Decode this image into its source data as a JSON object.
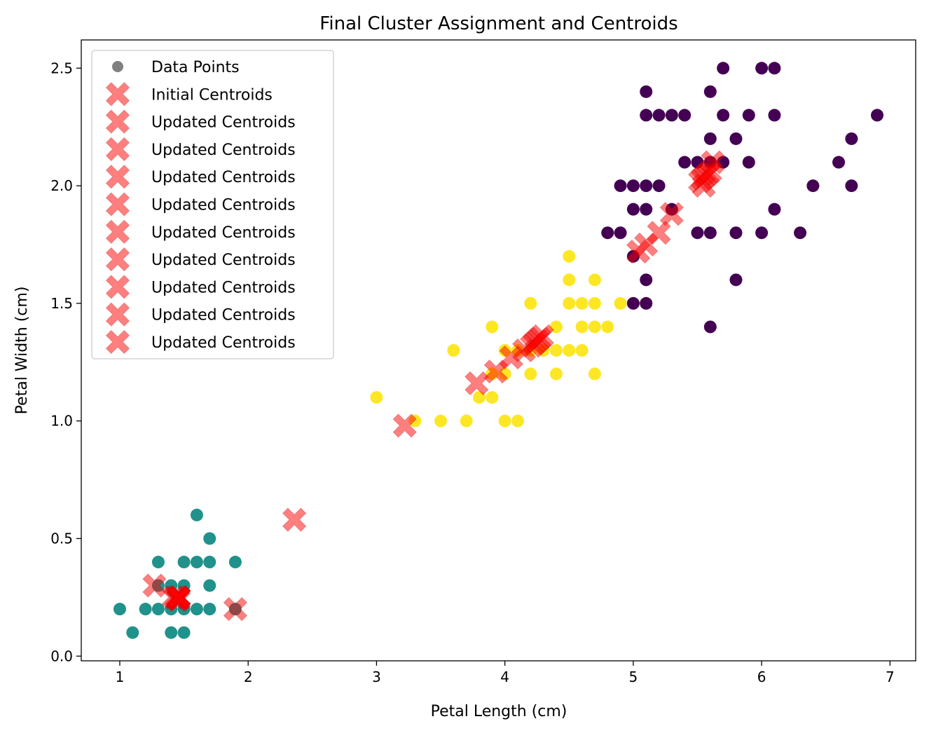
{
  "chart_data": {
    "type": "scatter",
    "title": "Final Cluster Assignment and Centroids",
    "xlabel": "Petal Length (cm)",
    "ylabel": "Petal Width (cm)",
    "xlim": [
      0.7,
      7.2
    ],
    "ylim": [
      -0.02,
      2.62
    ],
    "xticks": [
      1,
      2,
      3,
      4,
      5,
      6,
      7
    ],
    "xtick_labels": [
      "1",
      "2",
      "3",
      "4",
      "5",
      "6",
      "7"
    ],
    "yticks": [
      0.0,
      0.5,
      1.0,
      1.5,
      2.0,
      2.5
    ],
    "ytick_labels": [
      "0.0",
      "0.5",
      "1.0",
      "1.5",
      "2.0",
      "2.5"
    ],
    "grid": false,
    "legend_placement": "top-left",
    "legend": [
      {
        "label": "Data Points",
        "marker": "circle",
        "color": "#808080"
      },
      {
        "label": "Initial Centroids",
        "marker": "x",
        "color": "#ff0000"
      },
      {
        "label": "Updated Centroids",
        "marker": "x",
        "color": "#ff0000"
      },
      {
        "label": "Updated Centroids",
        "marker": "x",
        "color": "#ff0000"
      },
      {
        "label": "Updated Centroids",
        "marker": "x",
        "color": "#ff0000"
      },
      {
        "label": "Updated Centroids",
        "marker": "x",
        "color": "#ff0000"
      },
      {
        "label": "Updated Centroids",
        "marker": "x",
        "color": "#ff0000"
      },
      {
        "label": "Updated Centroids",
        "marker": "x",
        "color": "#ff0000"
      },
      {
        "label": "Updated Centroids",
        "marker": "x",
        "color": "#ff0000"
      },
      {
        "label": "Updated Centroids",
        "marker": "x",
        "color": "#ff0000"
      },
      {
        "label": "Updated Centroids",
        "marker": "x",
        "color": "#ff0000"
      }
    ],
    "series": [
      {
        "cluster": 0,
        "color": "#21918c",
        "points": [
          [
            1.0,
            0.2
          ],
          [
            1.1,
            0.1
          ],
          [
            1.2,
            0.2
          ],
          [
            1.3,
            0.2
          ],
          [
            1.3,
            0.3
          ],
          [
            1.3,
            0.4
          ],
          [
            1.4,
            0.1
          ],
          [
            1.4,
            0.2
          ],
          [
            1.4,
            0.3
          ],
          [
            1.5,
            0.1
          ],
          [
            1.5,
            0.2
          ],
          [
            1.5,
            0.3
          ],
          [
            1.5,
            0.4
          ],
          [
            1.6,
            0.2
          ],
          [
            1.6,
            0.4
          ],
          [
            1.6,
            0.6
          ],
          [
            1.7,
            0.2
          ],
          [
            1.7,
            0.3
          ],
          [
            1.7,
            0.4
          ],
          [
            1.7,
            0.5
          ],
          [
            1.9,
            0.2
          ],
          [
            1.9,
            0.4
          ]
        ]
      },
      {
        "cluster": 1,
        "color": "#fde725",
        "points": [
          [
            3.0,
            1.1
          ],
          [
            3.3,
            1.0
          ],
          [
            3.5,
            1.0
          ],
          [
            3.6,
            1.3
          ],
          [
            3.7,
            1.0
          ],
          [
            3.8,
            1.1
          ],
          [
            3.9,
            1.1
          ],
          [
            3.9,
            1.2
          ],
          [
            3.9,
            1.4
          ],
          [
            4.0,
            1.0
          ],
          [
            4.0,
            1.2
          ],
          [
            4.0,
            1.3
          ],
          [
            4.1,
            1.0
          ],
          [
            4.1,
            1.3
          ],
          [
            4.2,
            1.2
          ],
          [
            4.2,
            1.3
          ],
          [
            4.2,
            1.5
          ],
          [
            4.3,
            1.3
          ],
          [
            4.4,
            1.2
          ],
          [
            4.4,
            1.3
          ],
          [
            4.4,
            1.4
          ],
          [
            4.5,
            1.3
          ],
          [
            4.5,
            1.5
          ],
          [
            4.5,
            1.6
          ],
          [
            4.5,
            1.7
          ],
          [
            4.6,
            1.3
          ],
          [
            4.6,
            1.4
          ],
          [
            4.6,
            1.5
          ],
          [
            4.7,
            1.2
          ],
          [
            4.7,
            1.4
          ],
          [
            4.7,
            1.5
          ],
          [
            4.7,
            1.6
          ],
          [
            4.8,
            1.4
          ],
          [
            4.8,
            1.8
          ],
          [
            4.9,
            1.5
          ],
          [
            5.0,
            1.5
          ],
          [
            5.1,
            1.5
          ]
        ]
      },
      {
        "cluster": 2,
        "color": "#440154",
        "points": [
          [
            4.8,
            1.8
          ],
          [
            4.9,
            1.8
          ],
          [
            4.9,
            2.0
          ],
          [
            5.0,
            1.5
          ],
          [
            5.0,
            1.7
          ],
          [
            5.0,
            1.9
          ],
          [
            5.0,
            2.0
          ],
          [
            5.1,
            1.5
          ],
          [
            5.1,
            1.6
          ],
          [
            5.1,
            1.9
          ],
          [
            5.1,
            2.0
          ],
          [
            5.1,
            2.3
          ],
          [
            5.1,
            2.4
          ],
          [
            5.2,
            2.0
          ],
          [
            5.2,
            2.3
          ],
          [
            5.3,
            1.9
          ],
          [
            5.3,
            2.3
          ],
          [
            5.4,
            2.1
          ],
          [
            5.4,
            2.3
          ],
          [
            5.5,
            1.8
          ],
          [
            5.5,
            2.1
          ],
          [
            5.6,
            1.4
          ],
          [
            5.6,
            1.8
          ],
          [
            5.6,
            2.1
          ],
          [
            5.6,
            2.2
          ],
          [
            5.6,
            2.4
          ],
          [
            5.7,
            2.1
          ],
          [
            5.7,
            2.3
          ],
          [
            5.7,
            2.5
          ],
          [
            5.8,
            1.6
          ],
          [
            5.8,
            1.8
          ],
          [
            5.8,
            2.2
          ],
          [
            5.9,
            2.1
          ],
          [
            5.9,
            2.3
          ],
          [
            6.0,
            1.8
          ],
          [
            6.0,
            2.5
          ],
          [
            6.1,
            1.9
          ],
          [
            6.1,
            2.3
          ],
          [
            6.1,
            2.5
          ],
          [
            6.3,
            1.8
          ],
          [
            6.4,
            2.0
          ],
          [
            6.6,
            2.1
          ],
          [
            6.7,
            2.0
          ],
          [
            6.7,
            2.2
          ],
          [
            6.9,
            2.3
          ]
        ]
      }
    ],
    "centroids": [
      [
        [
          1.27,
          0.3
        ],
        [
          2.36,
          0.58
        ],
        [
          5.62,
          2.1
        ]
      ],
      [
        [
          1.42,
          0.25
        ],
        [
          3.22,
          0.98
        ],
        [
          5.55,
          2.0
        ]
      ],
      [
        [
          1.44,
          0.25
        ],
        [
          3.78,
          1.16
        ],
        [
          5.3,
          1.88
        ]
      ],
      [
        [
          1.45,
          0.24
        ],
        [
          3.93,
          1.21
        ],
        [
          5.2,
          1.8
        ]
      ],
      [
        [
          1.46,
          0.24
        ],
        [
          4.05,
          1.27
        ],
        [
          5.1,
          1.75
        ]
      ],
      [
        [
          1.46,
          0.25
        ],
        [
          4.15,
          1.3
        ],
        [
          5.04,
          1.72
        ]
      ],
      [
        [
          1.46,
          0.25
        ],
        [
          4.21,
          1.32
        ],
        [
          5.52,
          2.02
        ]
      ],
      [
        [
          1.46,
          0.25
        ],
        [
          4.23,
          1.33
        ],
        [
          5.54,
          2.03
        ]
      ],
      [
        [
          1.46,
          0.25
        ],
        [
          4.25,
          1.34
        ],
        [
          5.56,
          2.04
        ]
      ],
      [
        [
          1.46,
          0.25
        ],
        [
          4.27,
          1.35
        ],
        [
          5.58,
          2.05
        ]
      ],
      [
        [
          1.9,
          0.2
        ],
        [
          4.29,
          1.36
        ],
        [
          5.6,
          2.06
        ]
      ]
    ]
  }
}
